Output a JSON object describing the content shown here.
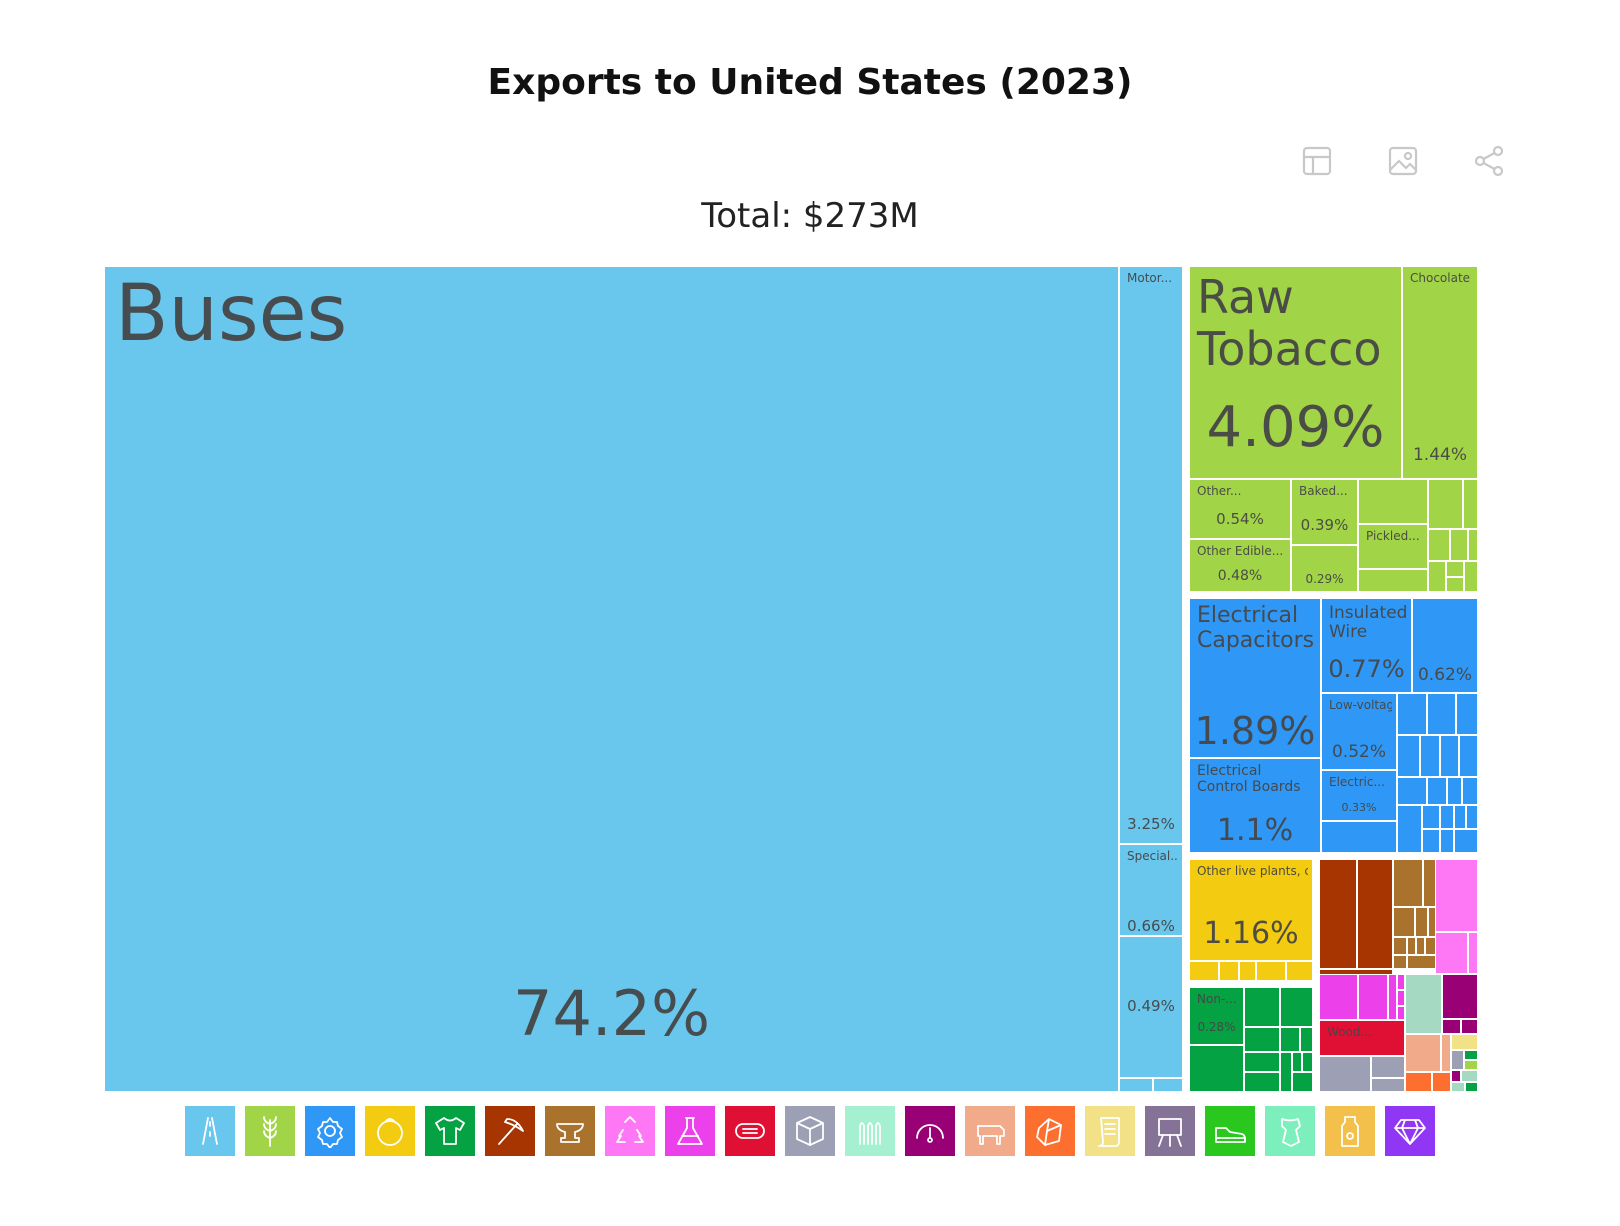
{
  "chart_data": {
    "type": "treemap",
    "title": "Exports to United States (2023)",
    "total_label": "Total: $273M",
    "tiles": [
      {
        "name": "Buses",
        "share": "74.2%",
        "sector": "Transportation"
      },
      {
        "name": "Motor...",
        "share": "3.25%",
        "sector": "Transportation"
      },
      {
        "name": "Special...",
        "share": "0.66%",
        "sector": "Transportation"
      },
      {
        "name": "",
        "share": "0.49%",
        "sector": "Transportation"
      },
      {
        "name": "Raw Tobacco",
        "share": "4.09%",
        "sector": "Vegetable Products"
      },
      {
        "name": "Chocolate",
        "share": "1.44%",
        "sector": "Foodstuffs"
      },
      {
        "name": "Other...",
        "share": "0.54%",
        "sector": "Foodstuffs"
      },
      {
        "name": "Baked...",
        "share": "0.39%",
        "sector": "Foodstuffs"
      },
      {
        "name": "Other Edible...",
        "share": "0.48%",
        "sector": "Foodstuffs"
      },
      {
        "name": "",
        "share": "0.29%",
        "sector": "Foodstuffs"
      },
      {
        "name": "Pickled...",
        "share": "",
        "sector": "Foodstuffs"
      },
      {
        "name": "Electrical Capacitors",
        "share": "1.89%",
        "sector": "Machines"
      },
      {
        "name": "Insulated Wire",
        "share": "0.77%",
        "sector": "Machines"
      },
      {
        "name": "",
        "share": "0.62%",
        "sector": "Machines"
      },
      {
        "name": "Low-voltage...",
        "share": "0.52%",
        "sector": "Machines"
      },
      {
        "name": "Electric...",
        "share": "0.33%",
        "sector": "Machines"
      },
      {
        "name": "Electrical Control Boards",
        "share": "1.1%",
        "sector": "Machines"
      },
      {
        "name": "Other live plants, cuttings and slips;...",
        "share": "1.16%",
        "sector": "Vegetable Products"
      },
      {
        "name": "Non-...",
        "share": "0.28%",
        "sector": "Textiles"
      },
      {
        "name": "Wood...",
        "share": "",
        "sector": "Paper Goods"
      }
    ]
  },
  "colors": {
    "transportation": "#69c6ed",
    "vegetable": "#a2d447",
    "machines": "#2f98f6",
    "foodstuffs": "#f3cb10",
    "textiles": "#05a244",
    "minerals": "#a73502",
    "metals": "#a9732e",
    "plastics": "#fe78f6",
    "chemicals": "#ec41ea",
    "paper": "#e01035",
    "misc": "#9da0b5",
    "instruments": "#9a0076",
    "animal": "#f1ab8b",
    "stone": "#fd6f2f",
    "arts": "#a6d9c2",
    "weapons": "#a4f0d1",
    "footwear": "#f2e186"
  },
  "legend": [
    {
      "name": "transportation-icon",
      "color": "#69c6ed"
    },
    {
      "name": "vegetable-products-icon",
      "color": "#a2d447"
    },
    {
      "name": "machines-icon",
      "color": "#2f98f6"
    },
    {
      "name": "foodstuffs-icon",
      "color": "#f3cb10"
    },
    {
      "name": "textiles-icon",
      "color": "#05a244"
    },
    {
      "name": "mineral-products-icon",
      "color": "#a73502"
    },
    {
      "name": "metals-icon",
      "color": "#a9732e"
    },
    {
      "name": "plastics-rubbers-icon",
      "color": "#fe78f6"
    },
    {
      "name": "chemical-products-icon",
      "color": "#ec41ea"
    },
    {
      "name": "animal-hides-icon",
      "color": "#e01035"
    },
    {
      "name": "miscellaneous-icon",
      "color": "#9da0b5"
    },
    {
      "name": "weapons-icon",
      "color": "#a4f0d1"
    },
    {
      "name": "instruments-icon",
      "color": "#9a0076"
    },
    {
      "name": "animal-products-icon",
      "color": "#f1ab8b"
    },
    {
      "name": "stone-glass-icon",
      "color": "#fd6f2f"
    },
    {
      "name": "paper-goods-icon",
      "color": "#f2e186"
    },
    {
      "name": "arts-antiques-icon",
      "color": "#857297"
    },
    {
      "name": "footwear-headwear-icon",
      "color": "#2ac71e"
    },
    {
      "name": "animal-vegetable-oils-icon",
      "color": "#7cefbc"
    },
    {
      "name": "foodstuffs-bottle-icon",
      "color": "#f2c04b"
    },
    {
      "name": "precious-metals-icon",
      "color": "#9036f5"
    }
  ]
}
